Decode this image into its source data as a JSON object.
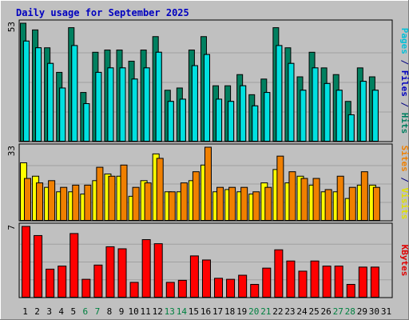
{
  "chart_data": {
    "type": "bar",
    "title": "Daily usage for September 2025",
    "categories": [
      "1",
      "2",
      "3",
      "4",
      "5",
      "6",
      "7",
      "8",
      "9",
      "10",
      "11",
      "12",
      "13",
      "14",
      "15",
      "16",
      "17",
      "18",
      "19",
      "20",
      "21",
      "22",
      "23",
      "24",
      "25",
      "26",
      "27",
      "28",
      "29",
      "30",
      "31"
    ],
    "weekend_days": [
      "6",
      "7",
      "13",
      "14",
      "20",
      "21",
      "27",
      "28"
    ],
    "panels": [
      {
        "id": "hits-files-pages",
        "scale_max_label": "53",
        "ylim": [
          0,
          53
        ],
        "axis_label": [
          {
            "text": "Pages",
            "color": "#00c0d8"
          },
          {
            "text": " / ",
            "color": "#000080"
          },
          {
            "text": "Files",
            "color": "#0000c0"
          },
          {
            "text": " / ",
            "color": "#000080"
          },
          {
            "text": "Hits",
            "color": "#008060"
          }
        ],
        "series": [
          {
            "name": "Hits",
            "color": "#008060",
            "values": [
              53,
              50,
              42,
              31,
              51,
              22,
              40,
              41,
              41,
              36,
              41,
              47,
              23,
              24,
              41,
              47,
              25,
              25,
              30,
              21,
              28,
              51,
              42,
              29,
              40,
              33,
              30,
              18,
              33,
              29,
              0
            ]
          },
          {
            "name": "Files",
            "color": "#00c0d8",
            "values": [
              45,
              42,
              35,
              24,
              43,
              17,
              31,
              33,
              33,
              28,
              33,
              40,
              18,
              19,
              34,
              39,
              19,
              18,
              25,
              16,
              22,
              43,
              35,
              23,
              33,
              26,
              23,
              12,
              27,
              23,
              0
            ]
          },
          {
            "name": "Pages",
            "color": "#00e0e0",
            "values": [
              45,
              42,
              35,
              24,
              43,
              17,
              31,
              33,
              33,
              28,
              33,
              40,
              18,
              19,
              34,
              39,
              19,
              18,
              25,
              16,
              22,
              43,
              35,
              23,
              33,
              26,
              23,
              12,
              27,
              23,
              0
            ]
          }
        ]
      },
      {
        "id": "visits-sites",
        "scale_max_label": "33",
        "ylim": [
          0,
          33
        ],
        "axis_label": [
          {
            "text": "Sites",
            "color": "#f08000"
          },
          {
            "text": " / ",
            "color": "#000080"
          },
          {
            "text": "Visits",
            "color": "#e0e000"
          }
        ],
        "series": [
          {
            "name": "Visits",
            "color": "#ffff00",
            "values": [
              26,
              20,
              15,
              13,
              13,
              12,
              18,
              21,
              20,
              11,
              18,
              30,
              13,
              13,
              18,
              25,
              13,
              14,
              13,
              12,
              17,
              23,
              17,
              20,
              16,
              13,
              13,
              10,
              16,
              16,
              0
            ]
          },
          {
            "name": "Sites",
            "color": "#f08000",
            "values": [
              19,
              17,
              18,
              15,
              16,
              16,
              24,
              20,
              25,
              15,
              17,
              28,
              13,
              17,
              22,
              33,
              15,
              15,
              15,
              13,
              15,
              29,
              22,
              19,
              19,
              14,
              20,
              15,
              22,
              15,
              0
            ]
          }
        ]
      },
      {
        "id": "kbytes",
        "scale_max_label": "7",
        "ylim": [
          0,
          7
        ],
        "axis_label": [
          {
            "text": "KBytes",
            "color": "#e00000"
          }
        ],
        "series": [
          {
            "name": "KBytes",
            "color": "#ff0000",
            "values": [
              7,
              6.1,
              2.8,
              3.1,
              6.3,
              1.8,
              3.2,
              5.0,
              4.8,
              1.5,
              5.7,
              5.3,
              1.5,
              1.7,
              4.1,
              3.7,
              1.9,
              1.8,
              2.2,
              1.3,
              2.9,
              4.7,
              3.6,
              2.6,
              3.6,
              3.1,
              3.1,
              1.3,
              3.0,
              3.0,
              0
            ]
          }
        ]
      }
    ]
  },
  "colors": {
    "background": "#c0c0c0",
    "title": "#0000c0",
    "weekday_label": "#000080",
    "weekend_label": "#008040",
    "border": "#000000"
  }
}
